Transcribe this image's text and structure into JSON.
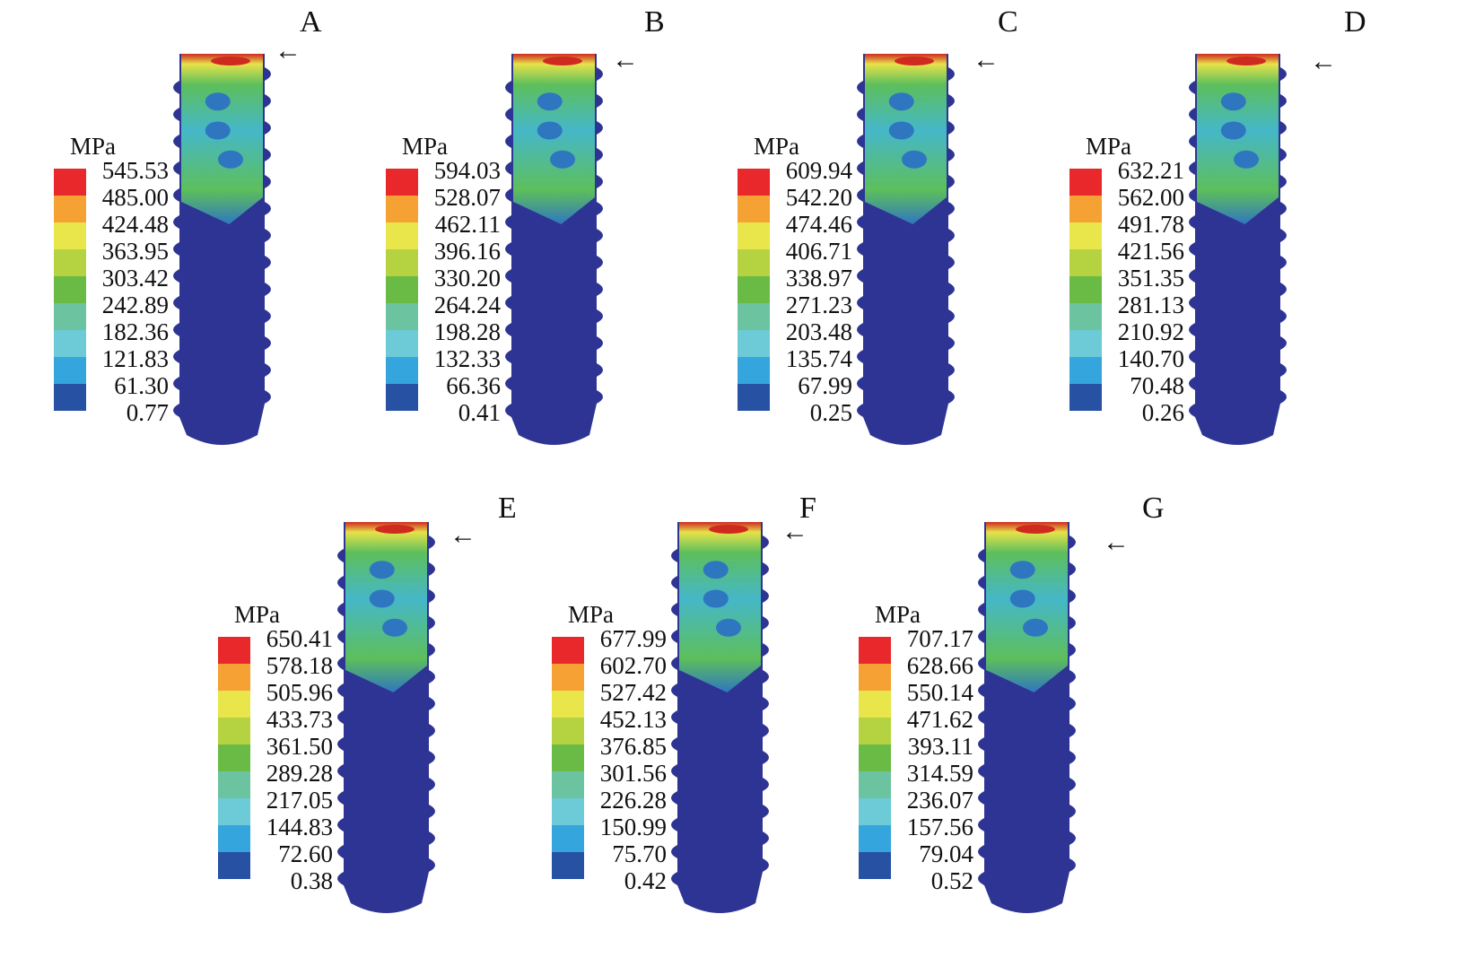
{
  "legend_colors": [
    "#e8282b",
    "#f5a133",
    "#e9e64b",
    "#b5d341",
    "#69bb45",
    "#6cc3a0",
    "#6ccbd7",
    "#35a6dd",
    "#2751a3"
  ],
  "implant_colors": {
    "body": "#2e3493",
    "neck_high": "#cf2a20",
    "neck_mid": "#e7e24a",
    "neck_green": "#5dbf5b",
    "neck_cyan": "#45b7c8",
    "neck_blue": "#2f76c0"
  },
  "arrow_glyph": "←",
  "panels": [
    {
      "label": "A",
      "unit": "MPa",
      "values": [
        "545.53",
        "485.00",
        "424.48",
        "363.95",
        "303.42",
        "242.89",
        "182.36",
        "121.83",
        "61.30",
        "0.77"
      ]
    },
    {
      "label": "B",
      "unit": "MPa",
      "values": [
        "594.03",
        "528.07",
        "462.11",
        "396.16",
        "330.20",
        "264.24",
        "198.28",
        "132.33",
        "66.36",
        "0.41"
      ]
    },
    {
      "label": "C",
      "unit": "MPa",
      "values": [
        "609.94",
        "542.20",
        "474.46",
        "406.71",
        "338.97",
        "271.23",
        "203.48",
        "135.74",
        "67.99",
        "0.25"
      ]
    },
    {
      "label": "D",
      "unit": "MPa",
      "values": [
        "632.21",
        "562.00",
        "491.78",
        "421.56",
        "351.35",
        "281.13",
        "210.92",
        "140.70",
        "70.48",
        "0.26"
      ]
    },
    {
      "label": "E",
      "unit": "MPa",
      "values": [
        "650.41",
        "578.18",
        "505.96",
        "433.73",
        "361.50",
        "289.28",
        "217.05",
        "144.83",
        "72.60",
        "0.38"
      ]
    },
    {
      "label": "F",
      "unit": "MPa",
      "values": [
        "677.99",
        "602.70",
        "527.42",
        "452.13",
        "376.85",
        "301.56",
        "226.28",
        "150.99",
        "75.70",
        "0.42"
      ]
    },
    {
      "label": "G",
      "unit": "MPa",
      "values": [
        "707.17",
        "628.66",
        "550.14",
        "471.62",
        "393.11",
        "314.59",
        "236.07",
        "157.56",
        "79.04",
        "0.52"
      ]
    }
  ]
}
